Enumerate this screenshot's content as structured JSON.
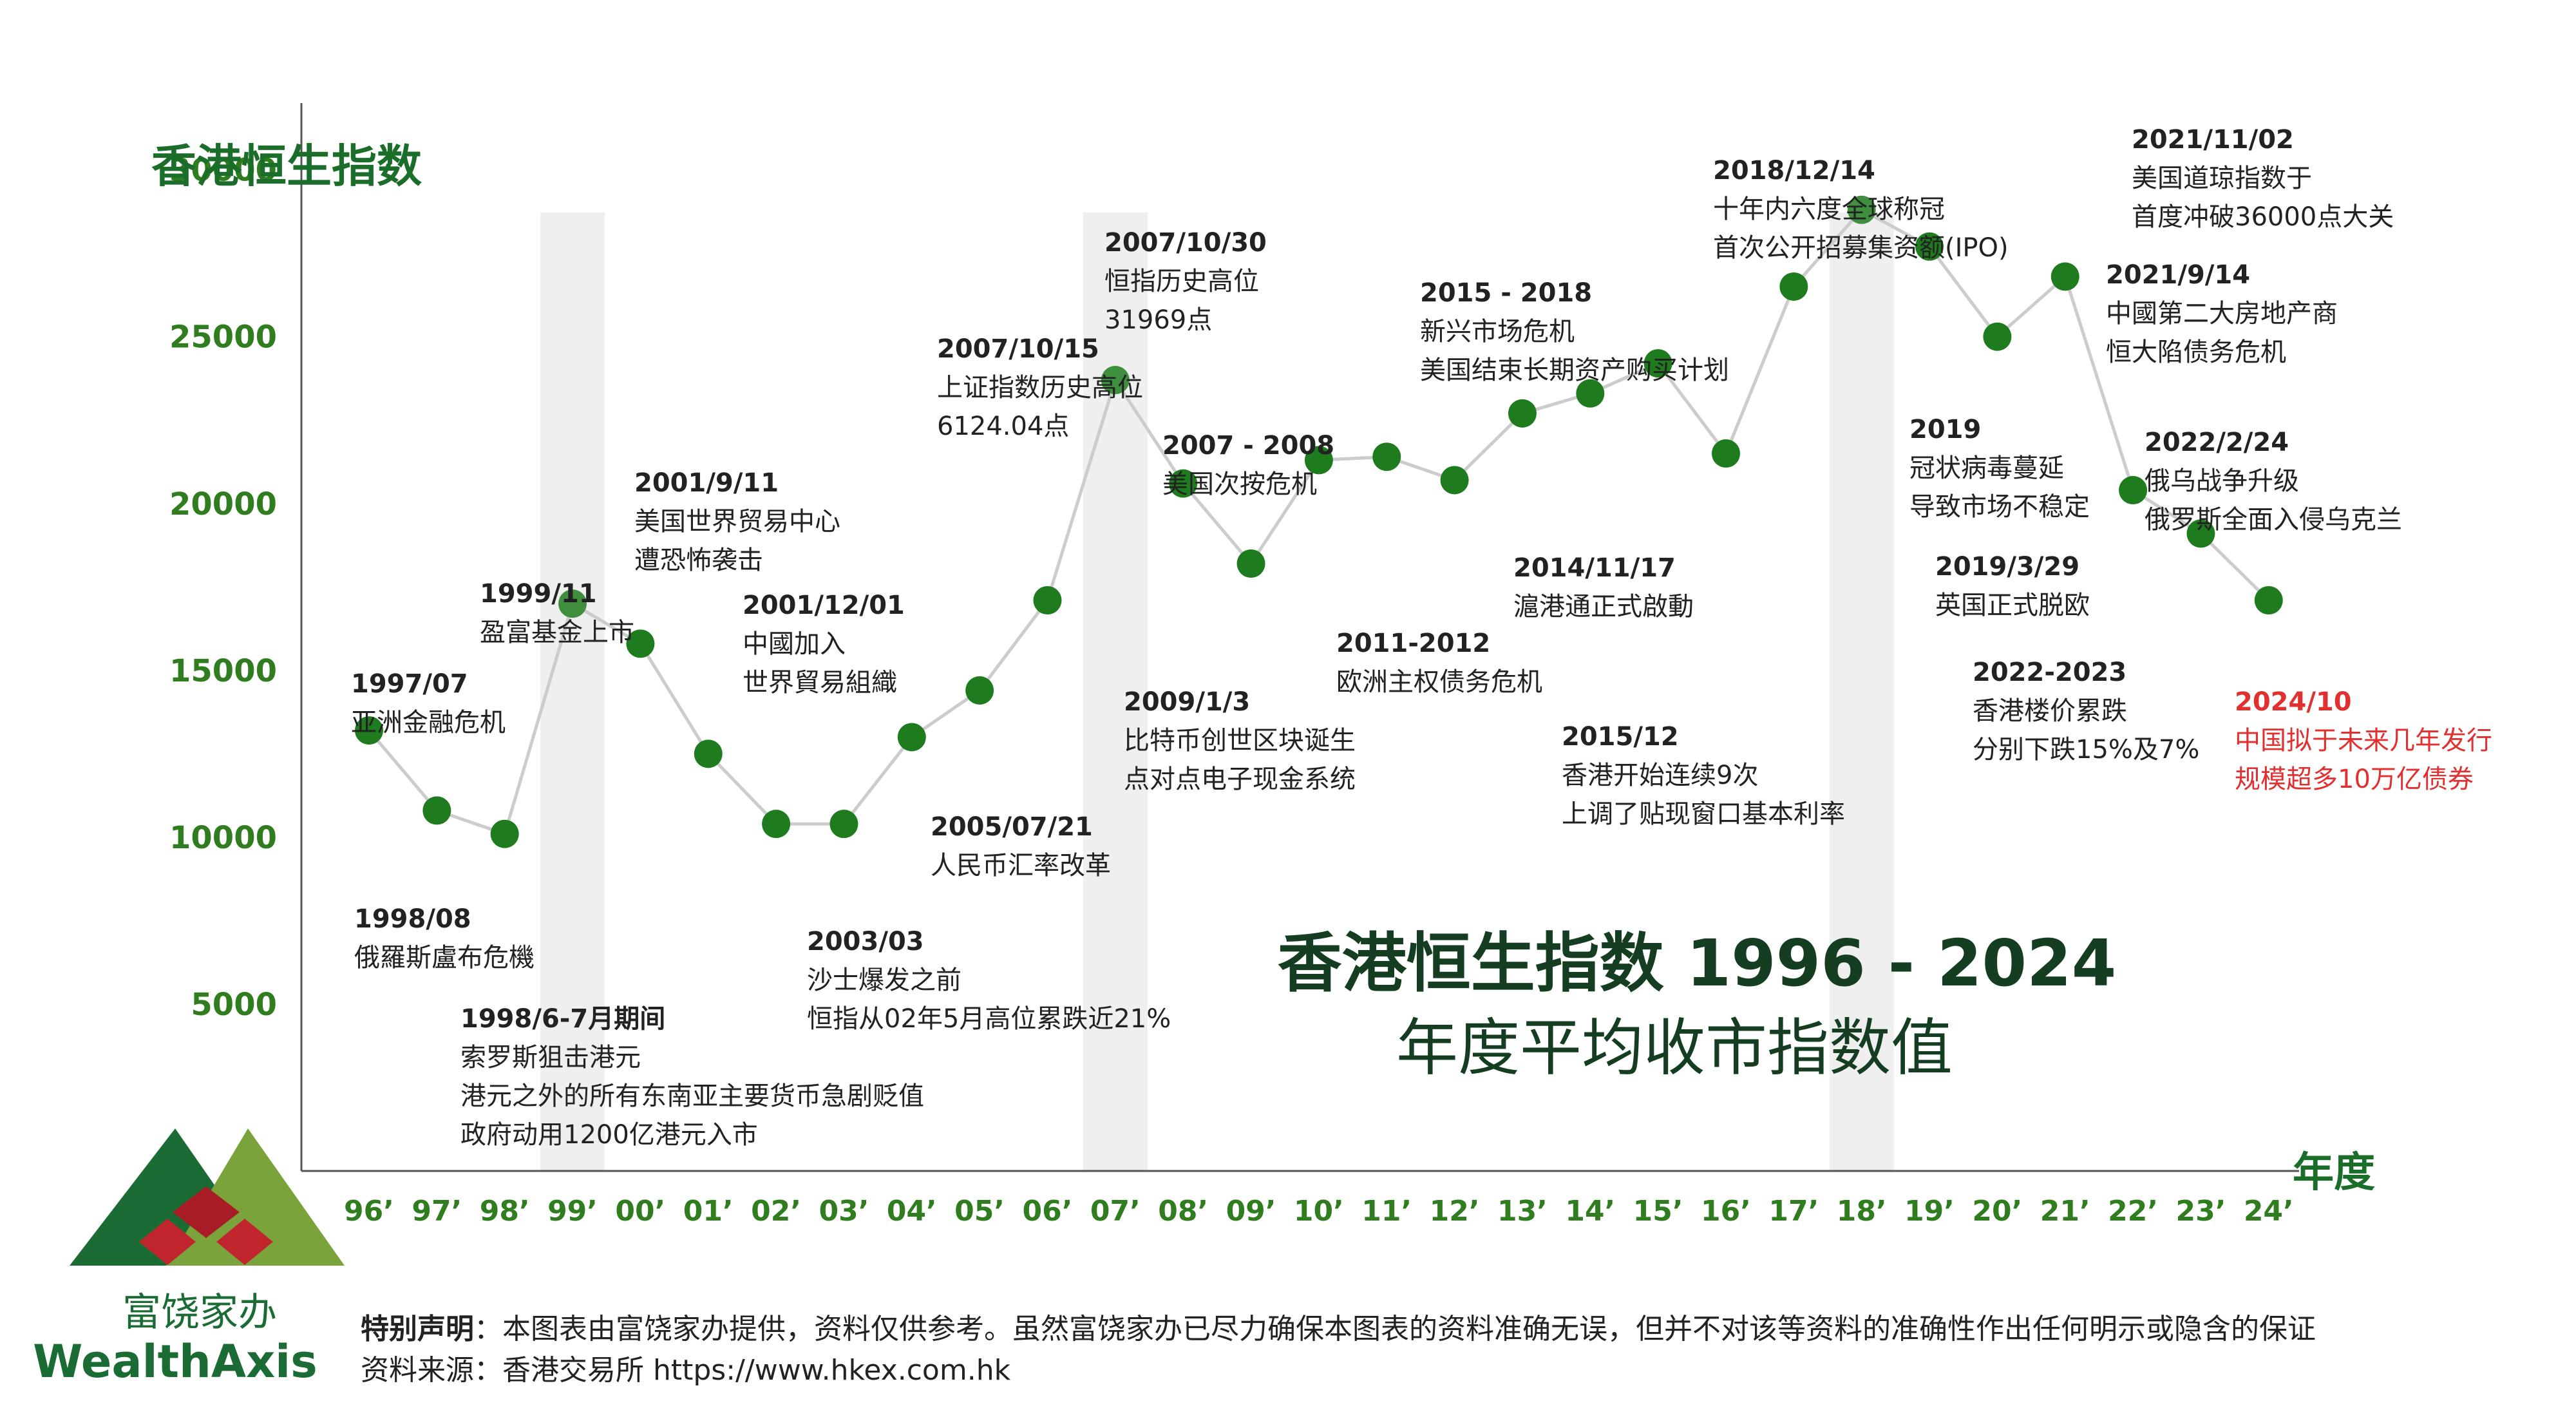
{
  "colors": {
    "brand_green": "#1b6e2a",
    "tick_green": "#2f7d1f",
    "point_green": "#1e7b1e",
    "line_gray": "#cccccc",
    "band_gray": "#efefef",
    "title_dark": "#153d22",
    "text_dark": "#222222",
    "red": "#e03030",
    "logo_dark_green": "#1b6b34",
    "logo_light_green": "#7aa33c",
    "logo_red": "#a81d25"
  },
  "chart_data": {
    "type": "line",
    "title": "香港恒生指数 1996 - 2024",
    "subtitle": "年度平均收市指数值",
    "ylabel": "香港恒生指数",
    "xlabel": "年度",
    "ylim": [
      0,
      32000
    ],
    "yticks": [
      5000,
      10000,
      15000,
      20000,
      25000,
      30000
    ],
    "x_labels": [
      "96’",
      "97’",
      "98’",
      "99’",
      "00’",
      "01’",
      "02’",
      "03’",
      "04’",
      "05’",
      "06’",
      "07’",
      "08’",
      "09’",
      "10’",
      "11’",
      "12’",
      "13’",
      "14’",
      "15’",
      "16’",
      "17’",
      "18’",
      "19’",
      "20’",
      "21’",
      "22’",
      "23’",
      "24’"
    ],
    "highlight_years": [
      "99’",
      "07’",
      "18’"
    ],
    "series": [
      {
        "values": [
          13200,
          10800,
          10100,
          17000,
          15800,
          12500,
          10400,
          10400,
          13000,
          14400,
          17100,
          23700,
          20600,
          18200,
          21300,
          21400,
          20700,
          22700,
          23300,
          24200,
          21500,
          26500,
          28800,
          27700,
          25000,
          26800,
          20400,
          19100,
          17100
        ]
      }
    ],
    "annotations": [
      {
        "date": "1997/07",
        "lines": [
          "亚洲金融危机"
        ]
      },
      {
        "date": "1998/08",
        "lines": [
          "俄羅斯盧布危機"
        ]
      },
      {
        "date": "1998/6-7月期间",
        "lines": [
          "索罗斯狙击港元",
          "港元之外的所有东南亚主要货币急剧贬值",
          "政府动用1200亿港元入市"
        ]
      },
      {
        "date": "1999/11",
        "lines": [
          "盈富基金上市"
        ]
      },
      {
        "date": "2001/9/11",
        "lines": [
          "美国世界贸易中心",
          "遭恐怖袭击"
        ]
      },
      {
        "date": "2001/12/01",
        "lines": [
          "中國加入",
          "世界貿易組織"
        ]
      },
      {
        "date": "2003/03",
        "lines": [
          "沙士爆发之前",
          "恒指从02年5月高位累跌近21%"
        ]
      },
      {
        "date": "2005/07/21",
        "lines": [
          "人民币汇率改革"
        ]
      },
      {
        "date": "2007/10/15",
        "lines": [
          "上证指数历史高位",
          "6124.04点"
        ]
      },
      {
        "date": "2007/10/30",
        "lines": [
          "恒指历史高位",
          "31969点"
        ]
      },
      {
        "date": "2007 - 2008",
        "lines": [
          "美国次按危机"
        ]
      },
      {
        "date": "2009/1/3",
        "lines": [
          "比特币创世区块诞生",
          "点对点电子现金系统"
        ]
      },
      {
        "date": "2011-2012",
        "lines": [
          "欧洲主权债务危机"
        ]
      },
      {
        "date": "2014/11/17",
        "lines": [
          "滬港通正式啟動"
        ]
      },
      {
        "date": "2015 - 2018",
        "lines": [
          "新兴市场危机",
          "美国结束长期资产购买计划"
        ]
      },
      {
        "date": "2015/12",
        "lines": [
          "香港开始连续9次",
          "上调了贴现窗口基本利率"
        ]
      },
      {
        "date": "2018/12/14",
        "lines": [
          "十年内六度全球称冠",
          "首次公开招募集资额(IPO)"
        ]
      },
      {
        "date": "2019",
        "lines": [
          "冠状病毒蔓延",
          "导致市场不稳定"
        ]
      },
      {
        "date": "2019/3/29",
        "lines": [
          "英国正式脱欧"
        ]
      },
      {
        "date": "2021/11/02",
        "lines": [
          "美国道琼指数于",
          "首度冲破36000点大关"
        ]
      },
      {
        "date": "2021/9/14",
        "lines": [
          "中國第二大房地产商",
          "恒大陷债务危机"
        ]
      },
      {
        "date": "2022/2/24",
        "lines": [
          "俄乌战争升级",
          "俄罗斯全面入侵乌克兰"
        ]
      },
      {
        "date": "2022-2023",
        "lines": [
          "香港楼价累跌",
          "分别下跌15%及7%"
        ]
      },
      {
        "date": "2024/10",
        "lines": [
          "中国拟于未来几年发行",
          "规模超多10万亿债券"
        ]
      }
    ]
  },
  "disclaimer": {
    "label": "特别声明",
    "text": "：本图表由富饶家办提供，资料仅供参考。虽然富饶家办已尽力确保本图表的资料准确无误，但并不对该等资料的准确性作出任何明示或隐含的保证",
    "source": "资料来源：香港交易所 https://www.hkex.com.hk"
  },
  "logo": {
    "name_cn": "富饶家办",
    "name_en": "WealthAxis"
  }
}
